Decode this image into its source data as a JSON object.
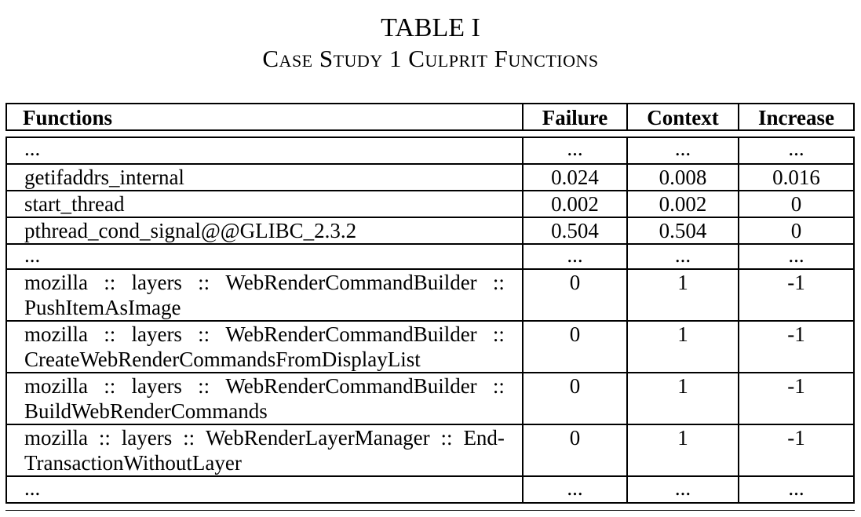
{
  "caption": {
    "number": "TABLE I",
    "title": "Case Study 1 Culprit Functions"
  },
  "table": {
    "headers": [
      "Functions",
      "Failure",
      "Context",
      "Increase"
    ],
    "rows": [
      {
        "function": [
          "..."
        ],
        "failure": "...",
        "context": "...",
        "increase": "..."
      },
      {
        "function": [
          "getifaddrs_internal"
        ],
        "failure": "0.024",
        "context": "0.008",
        "increase": "0.016"
      },
      {
        "function": [
          "start_thread"
        ],
        "failure": "0.002",
        "context": "0.002",
        "increase": "0"
      },
      {
        "function": [
          "pthread_cond_signal@@GLIBC_2.3.2"
        ],
        "failure": "0.504",
        "context": "0.504",
        "increase": "0"
      },
      {
        "function": [
          "..."
        ],
        "failure": "...",
        "context": "...",
        "increase": "..."
      },
      {
        "function": [
          "mozilla :: layers :: WebRenderCommandBuilder ::",
          "PushItemAsImage"
        ],
        "failure": "0",
        "context": "1",
        "increase": "-1"
      },
      {
        "function": [
          "mozilla :: layers :: WebRenderCommandBuilder ::",
          "CreateWebRenderCommandsFromDisplayList"
        ],
        "failure": "0",
        "context": "1",
        "increase": "-1"
      },
      {
        "function": [
          "mozilla :: layers :: WebRenderCommandBuilder ::",
          "BuildWebRenderCommands"
        ],
        "failure": "0",
        "context": "1",
        "increase": "-1"
      },
      {
        "function": [
          "mozilla :: layers :: WebRenderLayerManager :: End-",
          "TransactionWithoutLayer"
        ],
        "failure": "0",
        "context": "1",
        "increase": "-1"
      },
      {
        "function": [
          "..."
        ],
        "failure": "...",
        "context": "...",
        "increase": "..."
      }
    ]
  }
}
